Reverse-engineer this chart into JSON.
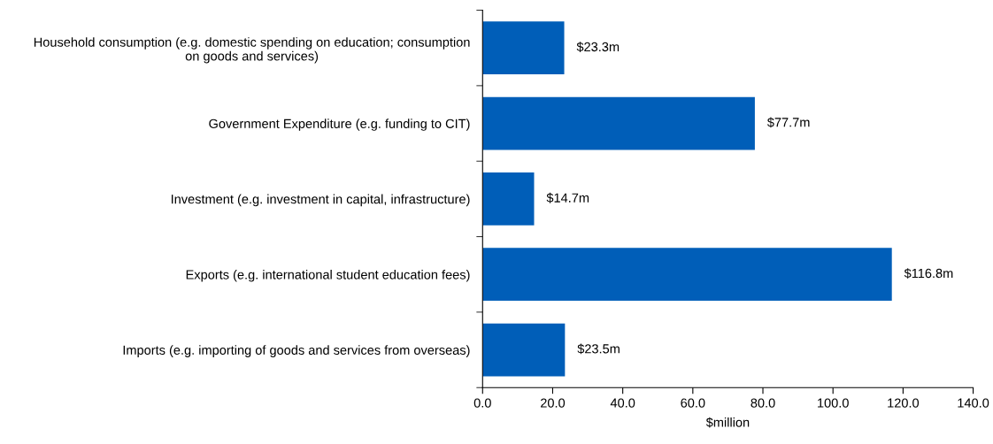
{
  "chart_data": {
    "type": "bar",
    "orientation": "horizontal",
    "xlabel": "$million",
    "categories": [
      "Household consumption (e.g. domestic spending on education; consumption\non goods and services)",
      "Government Expenditure (e.g. funding to CIT)",
      "Investment (e.g. investment in capital, infrastructure)",
      "Exports (e.g. international student education fees)",
      "Imports (e.g. importing of goods and services from overseas)"
    ],
    "values": [
      23.3,
      77.7,
      14.7,
      116.8,
      23.5
    ],
    "value_labels": [
      "$23.3m",
      "$77.7m",
      "$14.7m",
      "$116.8m",
      "$23.5m"
    ],
    "color": "#005eb8",
    "xlim": [
      0,
      140
    ],
    "xticks": [
      {
        "value": 0,
        "label": "0.0"
      },
      {
        "value": 20,
        "label": "20.0"
      },
      {
        "value": 40,
        "label": "40.0"
      },
      {
        "value": 60,
        "label": "60.0"
      },
      {
        "value": 80,
        "label": "80.0"
      },
      {
        "value": 100,
        "label": "100.0"
      },
      {
        "value": 120,
        "label": "120.0"
      },
      {
        "value": 140,
        "label": "140.0"
      }
    ],
    "grid": false
  }
}
